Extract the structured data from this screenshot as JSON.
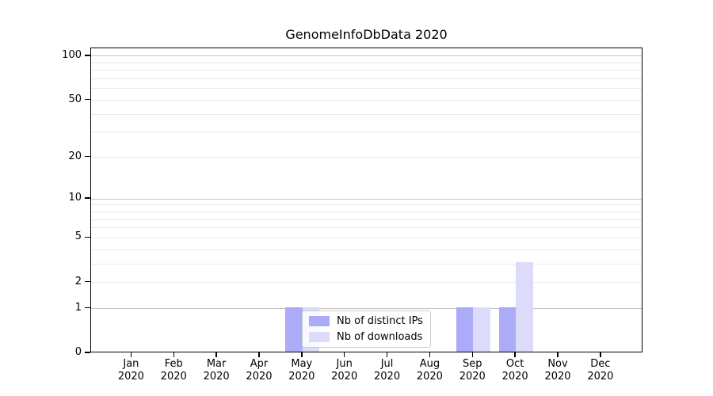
{
  "title": "GenomeInfoDbData 2020",
  "chart_data": {
    "type": "bar",
    "title": "GenomeInfoDbData 2020",
    "categories": [
      "Jan",
      "Feb",
      "Mar",
      "Apr",
      "May",
      "Jun",
      "Jul",
      "Aug",
      "Sep",
      "Oct",
      "Nov",
      "Dec"
    ],
    "x_year_label": "2020",
    "series": [
      {
        "name": "Nb of distinct IPs",
        "color": "#ababf8",
        "values": [
          0,
          0,
          0,
          0,
          1,
          0,
          0,
          0,
          1,
          1,
          0,
          0
        ]
      },
      {
        "name": "Nb of downloads",
        "color": "#dcdcfa",
        "values": [
          0,
          0,
          0,
          0,
          1,
          0,
          0,
          0,
          1,
          3,
          0,
          0
        ]
      }
    ],
    "y_scale": "log10(1+value)",
    "y_tick_values": [
      0,
      1,
      2,
      5,
      10,
      20,
      50,
      100
    ],
    "y_tick_labels": [
      "0",
      "1",
      "2",
      "5",
      "10",
      "20",
      "50",
      "100"
    ],
    "grid_minor_values": [
      2,
      3,
      4,
      5,
      6,
      7,
      8,
      9,
      20,
      30,
      40,
      50,
      60,
      70,
      80,
      90
    ],
    "grid_major_values": [
      1,
      10,
      100
    ],
    "ylim": [
      0,
      113
    ],
    "grid": "on",
    "legend_position": "lower center",
    "xlabel": "",
    "ylabel": ""
  },
  "legend": {
    "items": [
      {
        "label": "Nb of distinct IPs",
        "color": "#ababf8"
      },
      {
        "label": "Nb of downloads",
        "color": "#dcdcfa"
      }
    ]
  },
  "colors": {
    "distinct_ips_bar": "#ababf8",
    "downloads_bar": "#dcdcfa",
    "grid_minor": "#eaeaea",
    "grid_major": "#c4c4c4",
    "axis": "#000000",
    "background": "#ffffff"
  }
}
